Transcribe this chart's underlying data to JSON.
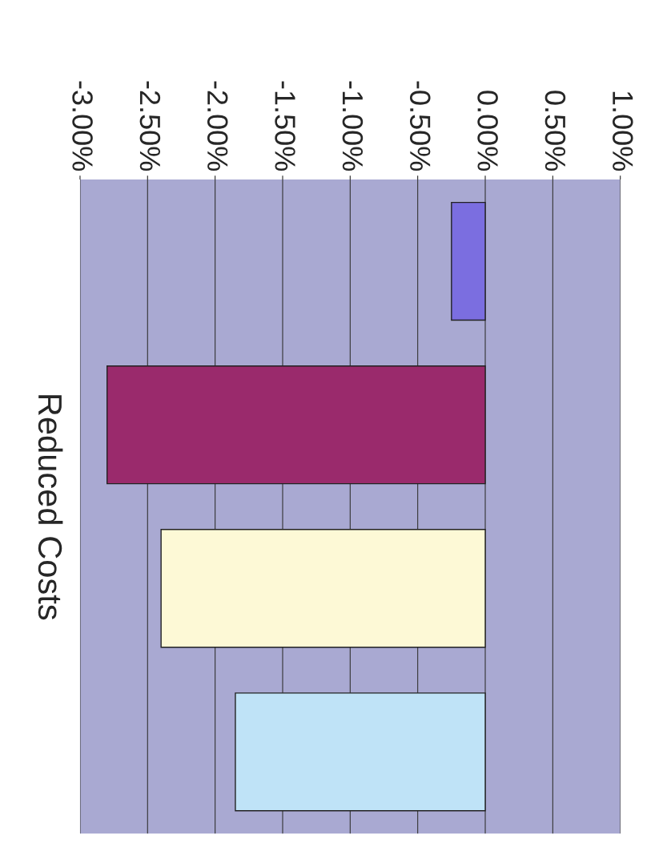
{
  "chart_data": {
    "type": "bar",
    "orientation": "horizontal",
    "ylabel": "Reduced Costs",
    "categories": [
      null,
      null,
      null,
      null
    ],
    "values": [
      -0.25,
      -2.8,
      -2.4,
      -1.85
    ],
    "colors": [
      "#7b6ee0",
      "#9a2a6c",
      "#fdf9d6",
      "#bfe3f7"
    ],
    "xlim": [
      -3,
      1
    ],
    "xticks": [
      {
        "value": -3,
        "label": "-3.00%"
      },
      {
        "value": -2.5,
        "label": "-2.50%"
      },
      {
        "value": -2,
        "label": "-2.00%"
      },
      {
        "value": -1.5,
        "label": "-1.50%"
      },
      {
        "value": -1,
        "label": "-1.00%"
      },
      {
        "value": -0.5,
        "label": "-0.50%"
      },
      {
        "value": 0,
        "label": "0.00%"
      },
      {
        "value": 0.5,
        "label": "0.50%"
      },
      {
        "value": 1,
        "label": "1.00%"
      }
    ],
    "grid": "x"
  }
}
